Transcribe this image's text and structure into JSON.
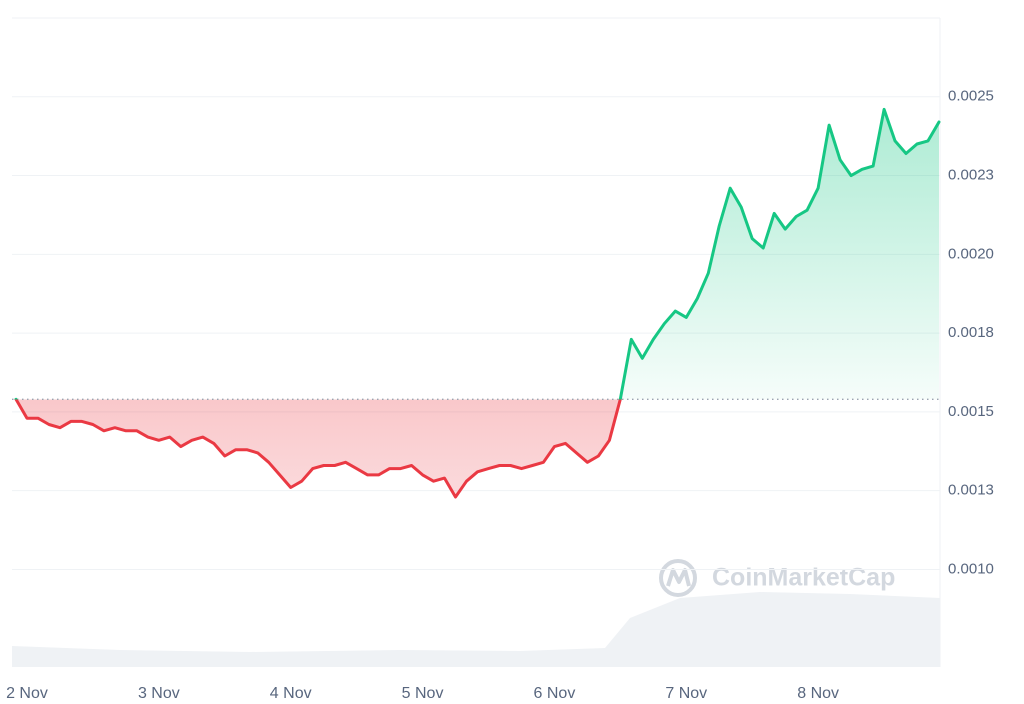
{
  "chart_data": {
    "type": "line",
    "watermark": "CoinMarketCap",
    "up_color": "#16c784",
    "down_color": "#ea3943",
    "baseline": 0.00154,
    "grid": true,
    "ylim": [
      0.0007,
      0.00275
    ],
    "yticks": [
      {
        "value": 0.001,
        "label": "0.0010"
      },
      {
        "value": 0.00125,
        "label": "0.0013"
      },
      0.0015,
      {
        "value": 0.00175,
        "label": "0.0018"
      },
      {
        "value": 0.002,
        "label": "0.0020"
      },
      {
        "value": 0.00225,
        "label": "0.0023"
      },
      0.0025
    ],
    "categories": [
      null,
      "2 Nov",
      null,
      null,
      null,
      null,
      null,
      null,
      null,
      null,
      null,
      null,
      null,
      "3 Nov",
      null,
      null,
      null,
      null,
      null,
      null,
      null,
      null,
      null,
      null,
      null,
      "4 Nov",
      null,
      null,
      null,
      null,
      null,
      null,
      null,
      null,
      null,
      null,
      null,
      "5 Nov",
      null,
      null,
      null,
      null,
      null,
      null,
      null,
      null,
      null,
      null,
      null,
      "6 Nov",
      null,
      null,
      null,
      null,
      null,
      null,
      null,
      null,
      null,
      null,
      null,
      "7 Nov",
      null,
      null,
      null,
      null,
      null,
      null,
      null,
      null,
      null,
      null,
      null,
      "8 Nov",
      null,
      null,
      null,
      null,
      null,
      null,
      null,
      null,
      null,
      null,
      null
    ],
    "values": [
      0.00154,
      0.00148,
      0.00148,
      0.00146,
      0.00145,
      0.00147,
      0.00147,
      0.00146,
      0.00144,
      0.00145,
      0.00144,
      0.00144,
      0.00142,
      0.00141,
      0.00142,
      0.00139,
      0.00141,
      0.00142,
      0.0014,
      0.00136,
      0.00138,
      0.00138,
      0.00137,
      0.00134,
      0.0013,
      0.00126,
      0.00128,
      0.00132,
      0.00133,
      0.00133,
      0.00134,
      0.00132,
      0.0013,
      0.0013,
      0.00132,
      0.00132,
      0.00133,
      0.0013,
      0.00128,
      0.00129,
      0.00123,
      0.00128,
      0.00131,
      0.00132,
      0.00133,
      0.00133,
      0.00132,
      0.00133,
      0.00134,
      0.00139,
      0.0014,
      0.00137,
      0.00134,
      0.00136,
      0.00141,
      0.00154,
      0.00173,
      0.00167,
      0.00173,
      0.00178,
      0.00182,
      0.0018,
      0.00186,
      0.00194,
      0.00209,
      0.00221,
      0.00215,
      0.00205,
      0.00202,
      0.00213,
      0.00208,
      0.00212,
      0.00214,
      0.00221,
      0.00241,
      0.0023,
      0.00225,
      0.00227,
      0.00228,
      0.00246,
      0.00236,
      0.00232,
      0.00235,
      0.00236,
      0.00242
    ]
  }
}
